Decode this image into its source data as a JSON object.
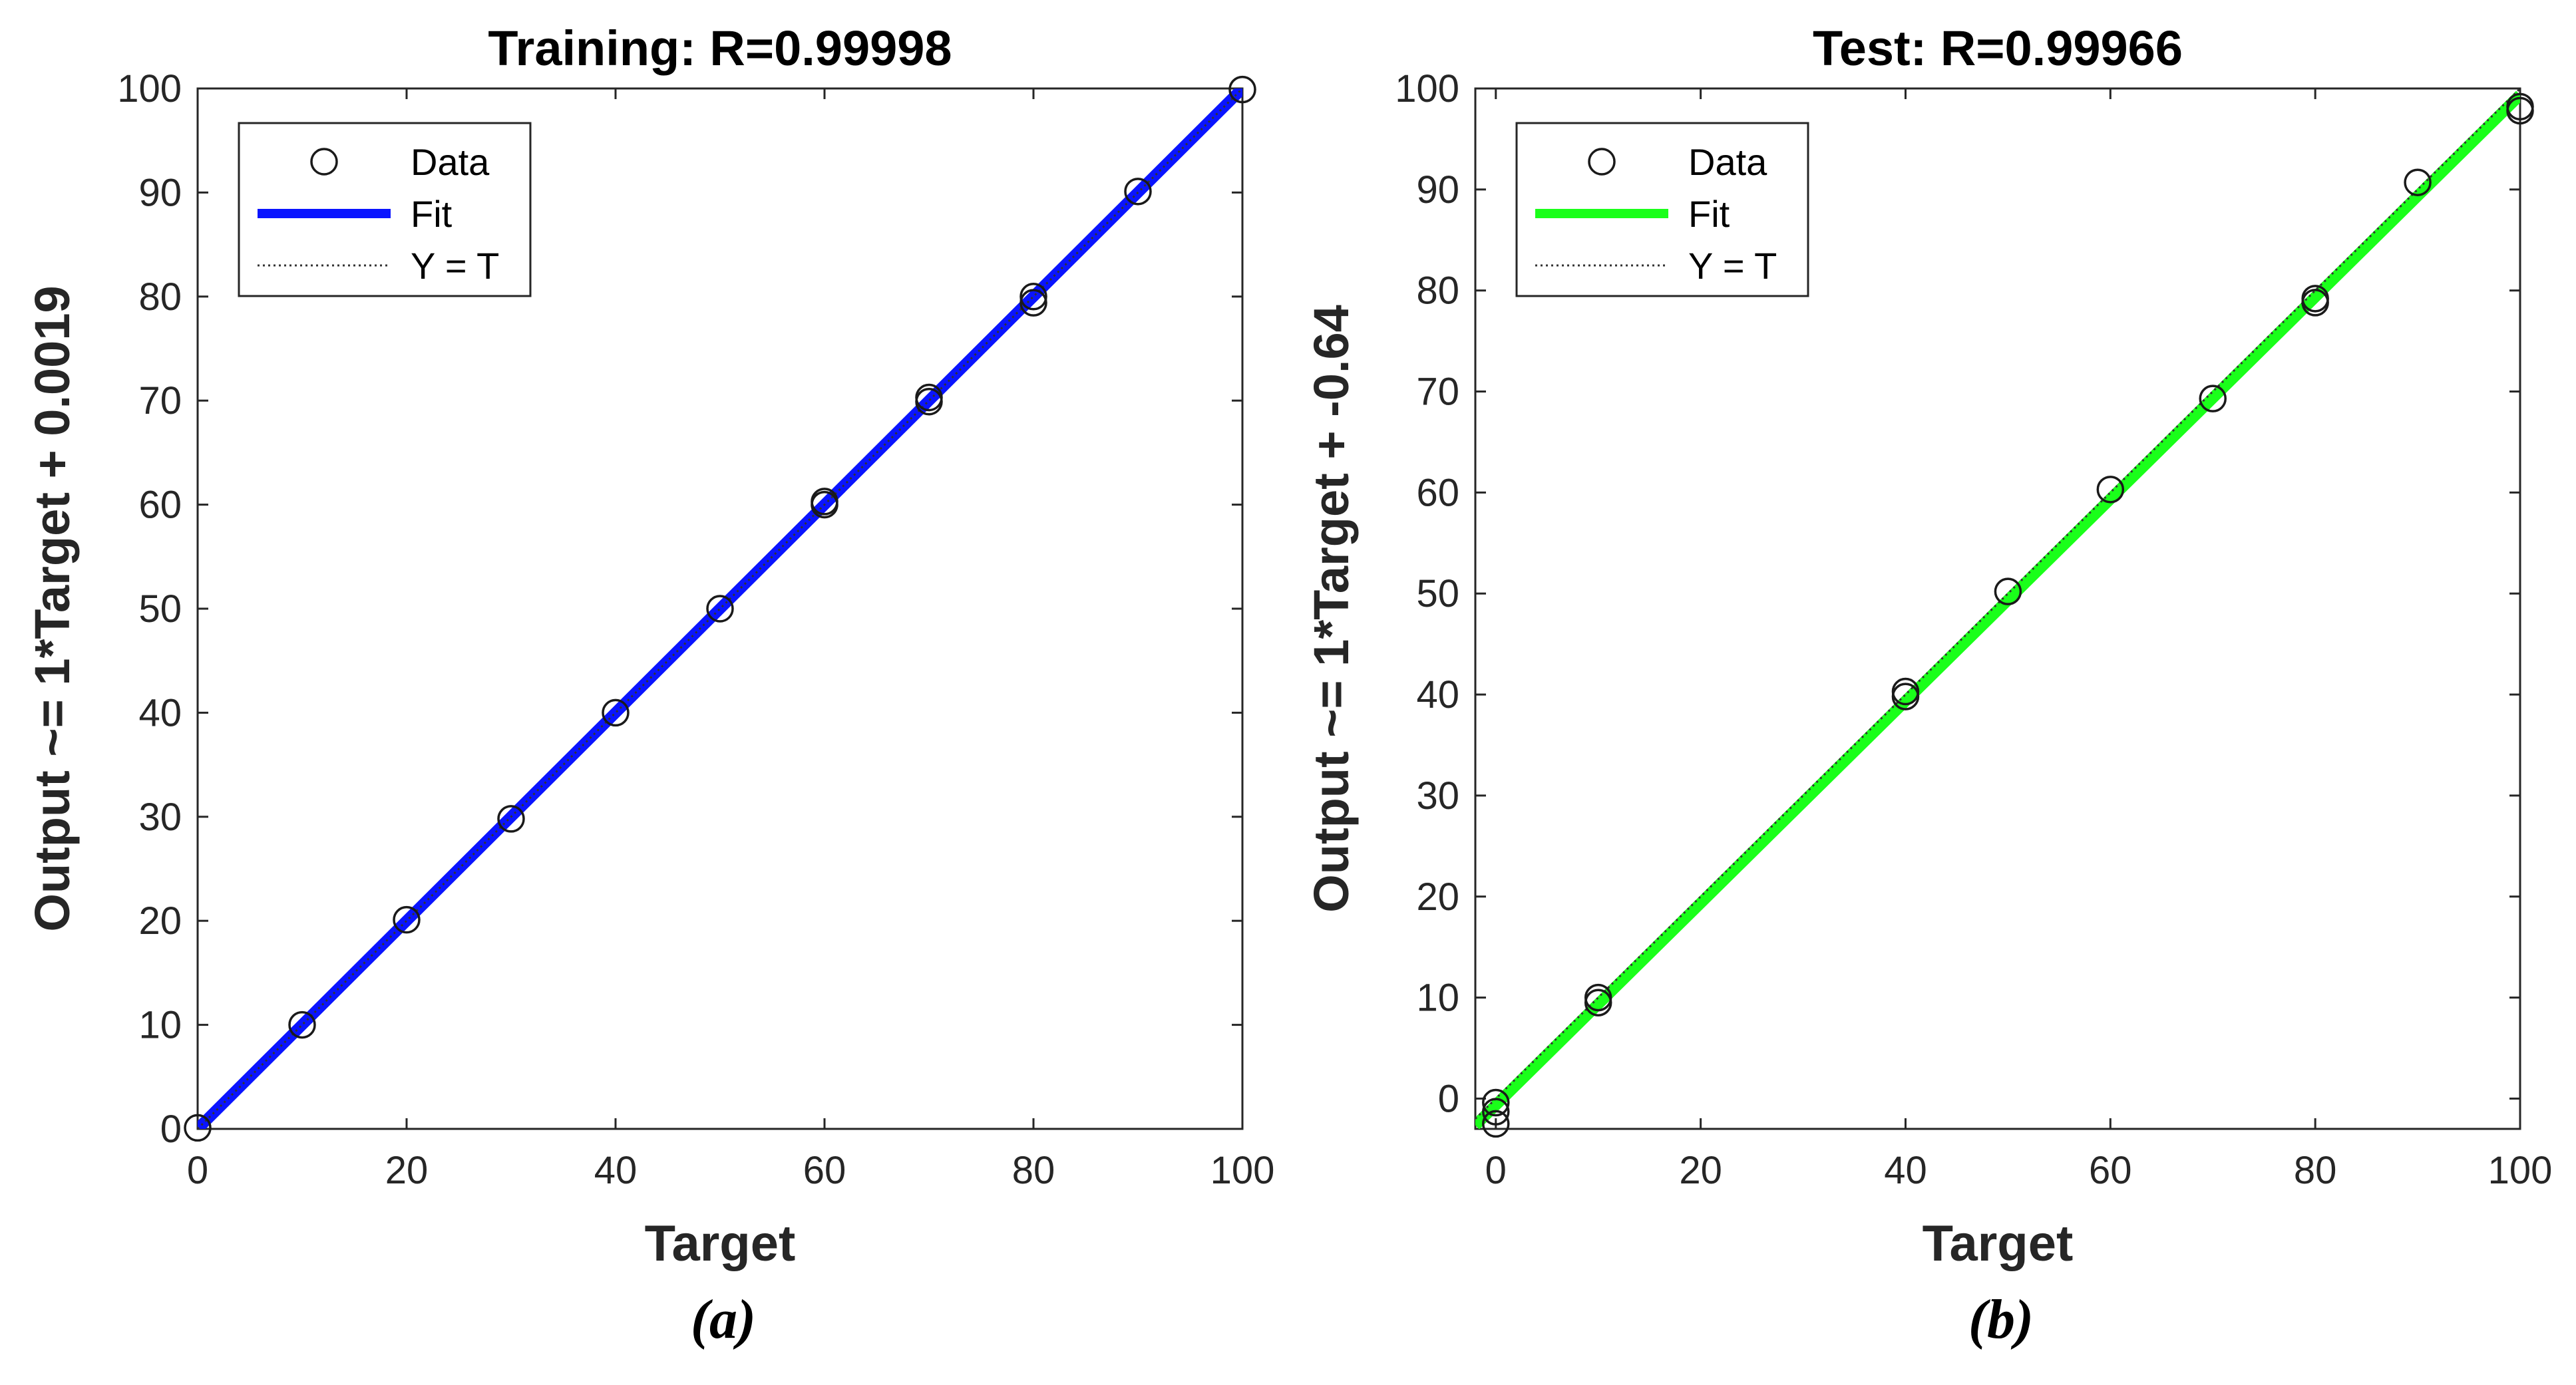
{
  "chart_data": [
    {
      "type": "scatter",
      "title": "Training: R=0.99998",
      "xlabel": "Target",
      "ylabel": "Output ~= 1*Target + 0.0019",
      "xlim": [
        0,
        100
      ],
      "ylim": [
        0,
        100
      ],
      "xticks": [
        "0",
        "20",
        "40",
        "60",
        "80",
        "100"
      ],
      "yticks": [
        "0",
        "10",
        "20",
        "30",
        "40",
        "50",
        "60",
        "70",
        "80",
        "90",
        "100"
      ],
      "grid": false,
      "legend_position": "top-left",
      "fit": {
        "slope": 1,
        "intercept": 0.0019
      },
      "fit_color": "#0a14ff",
      "series": [
        {
          "name": "Data",
          "points": [
            [
              0,
              0.1
            ],
            [
              10,
              10.0
            ],
            [
              20,
              20.1
            ],
            [
              30,
              29.8
            ],
            [
              40,
              40.0
            ],
            [
              50,
              50.0
            ],
            [
              60,
              60.0
            ],
            [
              60,
              60.3
            ],
            [
              70,
              69.9
            ],
            [
              70,
              70.3
            ],
            [
              80,
              79.4
            ],
            [
              80,
              80.0
            ],
            [
              90,
              90.1
            ],
            [
              100,
              99.9
            ]
          ]
        },
        {
          "name": "Fit"
        },
        {
          "name": "Y = T"
        }
      ],
      "caption": "(a)"
    },
    {
      "type": "scatter",
      "title": "Test: R=0.99966",
      "xlabel": "Target",
      "ylabel": "Output ~= 1*Target + -0.64",
      "xlim": [
        -2,
        100
      ],
      "ylim": [
        -3,
        100
      ],
      "xticks": [
        "0",
        "20",
        "40",
        "60",
        "80",
        "100"
      ],
      "yticks": [
        "0",
        "10",
        "20",
        "30",
        "40",
        "50",
        "60",
        "70",
        "80",
        "90",
        "100"
      ],
      "grid": false,
      "legend_position": "top-left",
      "fit": {
        "slope": 1,
        "intercept": -0.64
      },
      "fit_color": "#1aff1a",
      "series": [
        {
          "name": "Data",
          "points": [
            [
              0,
              -0.4
            ],
            [
              0,
              -1.3
            ],
            [
              0,
              -2.5
            ],
            [
              10,
              9.5
            ],
            [
              10,
              10.0
            ],
            [
              40,
              39.8
            ],
            [
              40,
              40.3
            ],
            [
              50,
              50.2
            ],
            [
              60,
              60.3
            ],
            [
              70,
              69.3
            ],
            [
              80,
              78.8
            ],
            [
              80,
              79.2
            ],
            [
              90,
              90.7
            ],
            [
              100,
              97.8
            ],
            [
              100,
              98.2
            ]
          ]
        },
        {
          "name": "Fit"
        },
        {
          "name": "Y = T"
        }
      ],
      "caption": "(b)"
    }
  ]
}
